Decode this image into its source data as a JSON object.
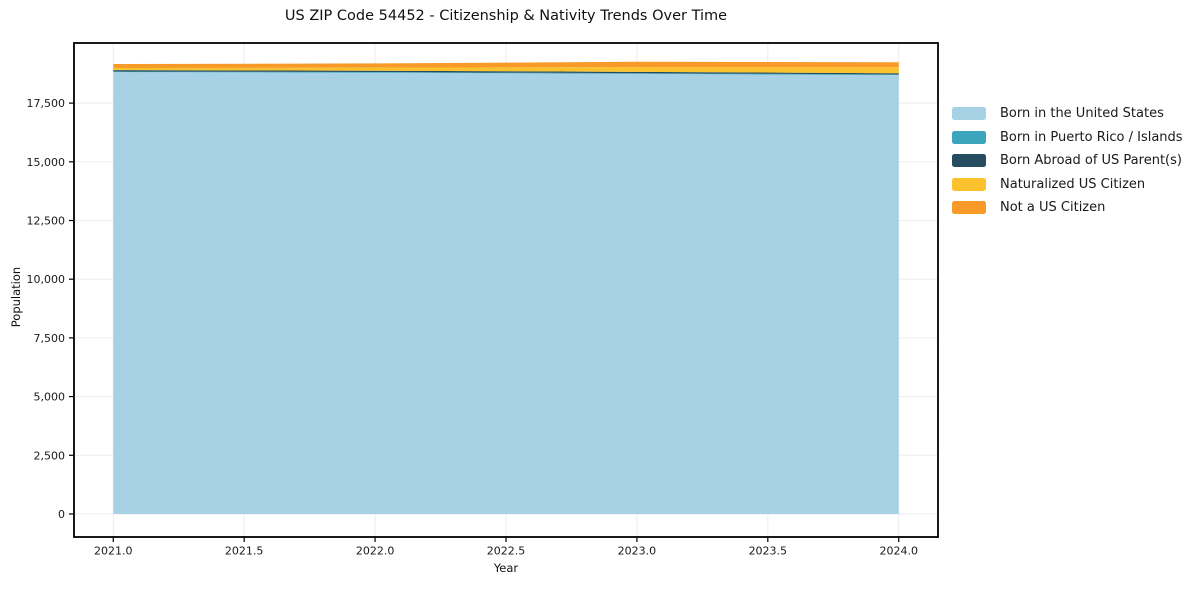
{
  "chart_data": {
    "type": "area",
    "stacked": true,
    "title": "US ZIP Code 54452 - Citizenship & Nativity Trends Over Time",
    "xlabel": "Year",
    "ylabel": "Population",
    "x": [
      2021,
      2022,
      2023,
      2024
    ],
    "series": [
      {
        "name": "Born in the United States",
        "color": "#a7d1e5",
        "values": [
          18820,
          18795,
          18745,
          18690
        ]
      },
      {
        "name": "Born in Puerto Rico / Islands",
        "color": "#3da4bd",
        "values": [
          30,
          30,
          30,
          30
        ]
      },
      {
        "name": "Born Abroad of US Parent(s)",
        "color": "#254d5f",
        "values": [
          55,
          55,
          55,
          50
        ]
      },
      {
        "name": "Naturalized US Citizen",
        "color": "#fcc22d",
        "values": [
          90,
          130,
          205,
          255
        ]
      },
      {
        "name": "Not a US Citizen",
        "color": "#f79a28",
        "values": [
          170,
          180,
          225,
          215
        ]
      }
    ],
    "xlim": [
      2020.85,
      2024.15
    ],
    "ylim": [
      -980,
      20060
    ],
    "xticks": [
      {
        "v": 2021.0,
        "label": "2021.0"
      },
      {
        "v": 2021.5,
        "label": "2021.5"
      },
      {
        "v": 2022.0,
        "label": "2022.0"
      },
      {
        "v": 2022.5,
        "label": "2022.5"
      },
      {
        "v": 2023.0,
        "label": "2023.0"
      },
      {
        "v": 2023.5,
        "label": "2023.5"
      },
      {
        "v": 2024.0,
        "label": "2024.0"
      }
    ],
    "yticks": [
      {
        "v": 0,
        "label": "0"
      },
      {
        "v": 2500,
        "label": "2,500"
      },
      {
        "v": 5000,
        "label": "5,000"
      },
      {
        "v": 7500,
        "label": "7,500"
      },
      {
        "v": 10000,
        "label": "10,000"
      },
      {
        "v": 12500,
        "label": "12,500"
      },
      {
        "v": 15000,
        "label": "15,000"
      },
      {
        "v": 17500,
        "label": "17,500"
      }
    ],
    "grid": true,
    "legend_position": "right-outside",
    "colors": {
      "grid": "#ededed",
      "spine": "#000000",
      "text": "#111111",
      "tick_text": "#1a1a1a",
      "background": "#ffffff"
    }
  }
}
